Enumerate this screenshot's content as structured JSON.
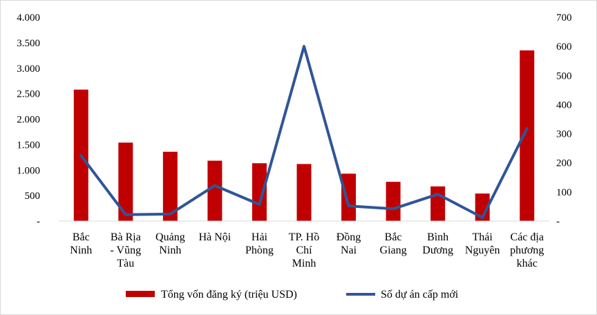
{
  "chart_data": {
    "type": "bar",
    "categories": [
      [
        "Bắc",
        "Ninh"
      ],
      [
        "Bà Rịa",
        "- Vũng",
        "Tàu"
      ],
      [
        "Quảng",
        "Ninh"
      ],
      [
        "Hà Nội"
      ],
      [
        "Hải",
        "Phòng"
      ],
      [
        "TP. Hồ",
        "Chí",
        "Minh"
      ],
      [
        "Đồng",
        "Nai"
      ],
      [
        "Bắc",
        "Giang"
      ],
      [
        "Bình",
        "Dương"
      ],
      [
        "Thái",
        "Nguyên"
      ],
      [
        "Các địa",
        "phương",
        "khác"
      ]
    ],
    "series": [
      {
        "name": "Tổng vốn đăng ký (triệu USD)",
        "type": "bar",
        "axis": "left",
        "color": "#c00000",
        "values": [
          2580,
          1540,
          1360,
          1185,
          1135,
          1120,
          930,
          770,
          680,
          540,
          3350
        ]
      },
      {
        "name": "Số dự án cấp mới",
        "type": "line",
        "axis": "right",
        "color": "#2f5597",
        "values": [
          225,
          22,
          24,
          122,
          57,
          600,
          52,
          42,
          92,
          12,
          318
        ]
      }
    ],
    "y_left": {
      "ticks": [
        "-",
        "500",
        "1.000",
        "1.500",
        "2.000",
        "2.500",
        "3.000",
        "3.500",
        "4.000"
      ],
      "range": [
        0,
        4000
      ]
    },
    "y_right": {
      "ticks": [
        "-",
        "100",
        "200",
        "300",
        "400",
        "500",
        "600",
        "700"
      ],
      "range": [
        0,
        700
      ]
    },
    "grid": false,
    "legend_position": "bottom"
  }
}
